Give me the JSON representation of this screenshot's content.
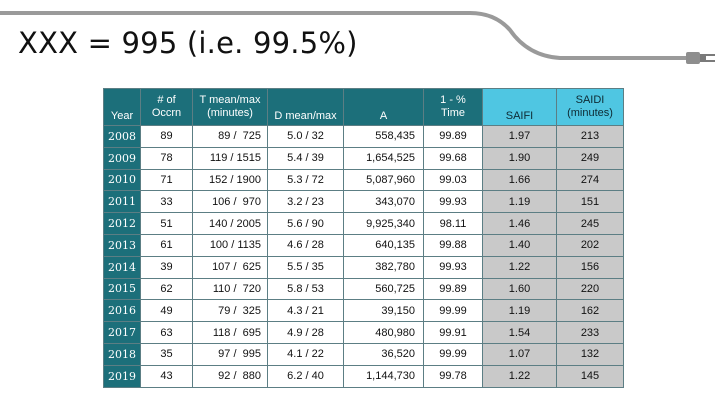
{
  "slide": {
    "title": "XXX = 995 (i.e. 99.5%)"
  },
  "colors": {
    "header_bg": "#1c6f7a",
    "highlight_header_bg": "#4fc6e2",
    "highlight_cell_bg": "#c9c9c9",
    "cord": "#9a9a9a"
  },
  "icons": {
    "plug": "plug-icon"
  },
  "table": {
    "headers": [
      "Year",
      "# of\nOccrn",
      "T mean/max\n(minutes)",
      "D mean/max",
      "A",
      "1 - %\nTime",
      "SAIFI",
      "SAIDI\n(minutes)"
    ],
    "rows": [
      [
        "2008",
        "89",
        "89 /  725",
        "5.0 / 32",
        "558,435",
        "99.89",
        "1.97",
        "213"
      ],
      [
        "2009",
        "78",
        "119 / 1515",
        "5.4 / 39",
        "1,654,525",
        "99.68",
        "1.90",
        "249"
      ],
      [
        "2010",
        "71",
        "152 / 1900",
        "5.3 / 72",
        "5,087,960",
        "99.03",
        "1.66",
        "274"
      ],
      [
        "2011",
        "33",
        "106 /  970",
        "3.2 / 23",
        "343,070",
        "99.93",
        "1.19",
        "151"
      ],
      [
        "2012",
        "51",
        "140 / 2005",
        "5.6 / 90",
        "9,925,340",
        "98.11",
        "1.46",
        "245"
      ],
      [
        "2013",
        "61",
        "100 / 1135",
        "4.6 / 28",
        "640,135",
        "99.88",
        "1.40",
        "202"
      ],
      [
        "2014",
        "39",
        "107 /  625",
        "5.5 / 35",
        "382,780",
        "99.93",
        "1.22",
        "156"
      ],
      [
        "2015",
        "62",
        "110 /  720",
        "5.8 / 53",
        "560,725",
        "99.89",
        "1.60",
        "220"
      ],
      [
        "2016",
        "49",
        "79 /  325",
        "4.3 / 21",
        "39,150",
        "99.99",
        "1.19",
        "162"
      ],
      [
        "2017",
        "63",
        "118 /  695",
        "4.9 / 28",
        "480,980",
        "99.91",
        "1.54",
        "233"
      ],
      [
        "2018",
        "35",
        "97 /  995",
        "4.1 / 22",
        "36,520",
        "99.99",
        "1.07",
        "132"
      ],
      [
        "2019",
        "43",
        "92 /  880",
        "6.2 / 40",
        "1,144,730",
        "99.78",
        "1.22",
        "145"
      ]
    ]
  }
}
